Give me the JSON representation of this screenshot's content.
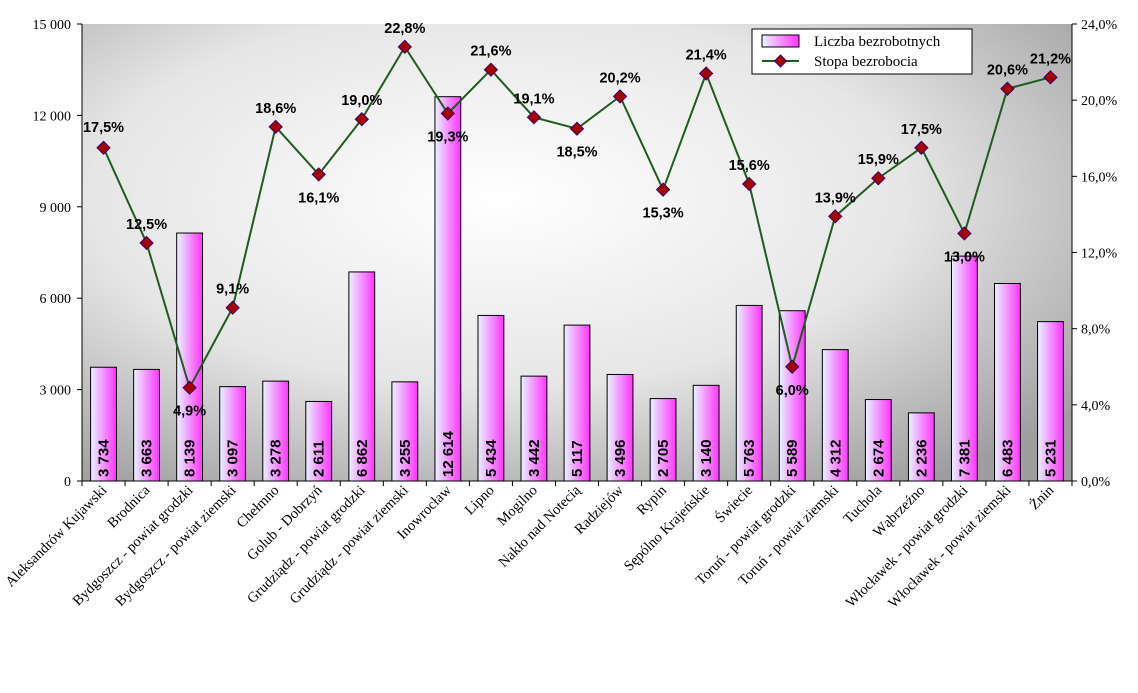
{
  "chart_data": {
    "type": "bar",
    "categories": [
      "Aleksandrów Kujawski",
      "Brodnica",
      "Bydgoszcz - powiat grodzki",
      "Bydgoszcz - powiat ziemski",
      "Chełmno",
      "Golub - Dobrzyń",
      "Grudziądz - powiat grodzki",
      "Grudziądz - powiat ziemski",
      "Inowrocław",
      "Lipno",
      "Mogilno",
      "Nakło nad Notecią",
      "Radziejów",
      "Rypin",
      "Sępólno Krajeńskie",
      "Świecie",
      "Toruń - powiat grodzki",
      "Toruń - powiat ziemski",
      "Tuchola",
      "Wąbrzeźno",
      "Włocławek - powiat grodzki",
      "Włocławek - powiat ziemski",
      "Żnin"
    ],
    "series": [
      {
        "name": "Liczba bezrobotnych",
        "type": "bar",
        "axis": "left",
        "values": [
          3734,
          3663,
          8139,
          3097,
          3278,
          2611,
          6862,
          3255,
          12614,
          5434,
          3442,
          5117,
          3496,
          2705,
          3140,
          5763,
          5589,
          4312,
          2674,
          2236,
          7381,
          6483,
          5231
        ],
        "labels": [
          "3 734",
          "3 663",
          "8 139",
          "3 097",
          "3 278",
          "2 611",
          "6 862",
          "3 255",
          "12 614",
          "5 434",
          "3 442",
          "5 117",
          "3 496",
          "2 705",
          "3 140",
          "5 763",
          "5 589",
          "4 312",
          "2 674",
          "2 236",
          "7 381",
          "6 483",
          "5 231"
        ]
      },
      {
        "name": "Stopa bezrobocia",
        "type": "line",
        "axis": "right",
        "values": [
          17.5,
          12.5,
          4.9,
          9.1,
          18.6,
          16.1,
          19.0,
          22.8,
          19.3,
          21.6,
          19.1,
          18.5,
          20.2,
          15.3,
          21.4,
          15.6,
          6.0,
          13.9,
          15.9,
          17.5,
          13.0,
          20.6,
          21.2
        ],
        "labels": [
          "17,5%",
          "12,5%",
          "4,9%",
          "9,1%",
          "18,6%",
          "16,1%",
          "19,0%",
          "22,8%",
          "19,3%",
          "21,6%",
          "19,1%",
          "18,5%",
          "20,2%",
          "15,3%",
          "21,4%",
          "15,6%",
          "6,0%",
          "13,9%",
          "15,9%",
          "17,5%",
          "13,0%",
          "20,6%",
          "21,2%"
        ]
      }
    ],
    "ylim_left": [
      0,
      15000
    ],
    "yticks_left": [
      "0",
      "3 000",
      "6 000",
      "9 000",
      "12 000",
      "15 000"
    ],
    "ylim_right": [
      0,
      24
    ],
    "yticks_right": [
      "0,0%",
      "4,0%",
      "8,0%",
      "12,0%",
      "16,0%",
      "20,0%",
      "24,0%"
    ],
    "legend_position": "top-right",
    "grid": false,
    "colors": {
      "bar_light": "#e8f4ff",
      "bar_dark": "#ff33ff",
      "line": "#1f5c1f",
      "marker": "#a40000",
      "marker_edge": "#3a006e"
    }
  }
}
